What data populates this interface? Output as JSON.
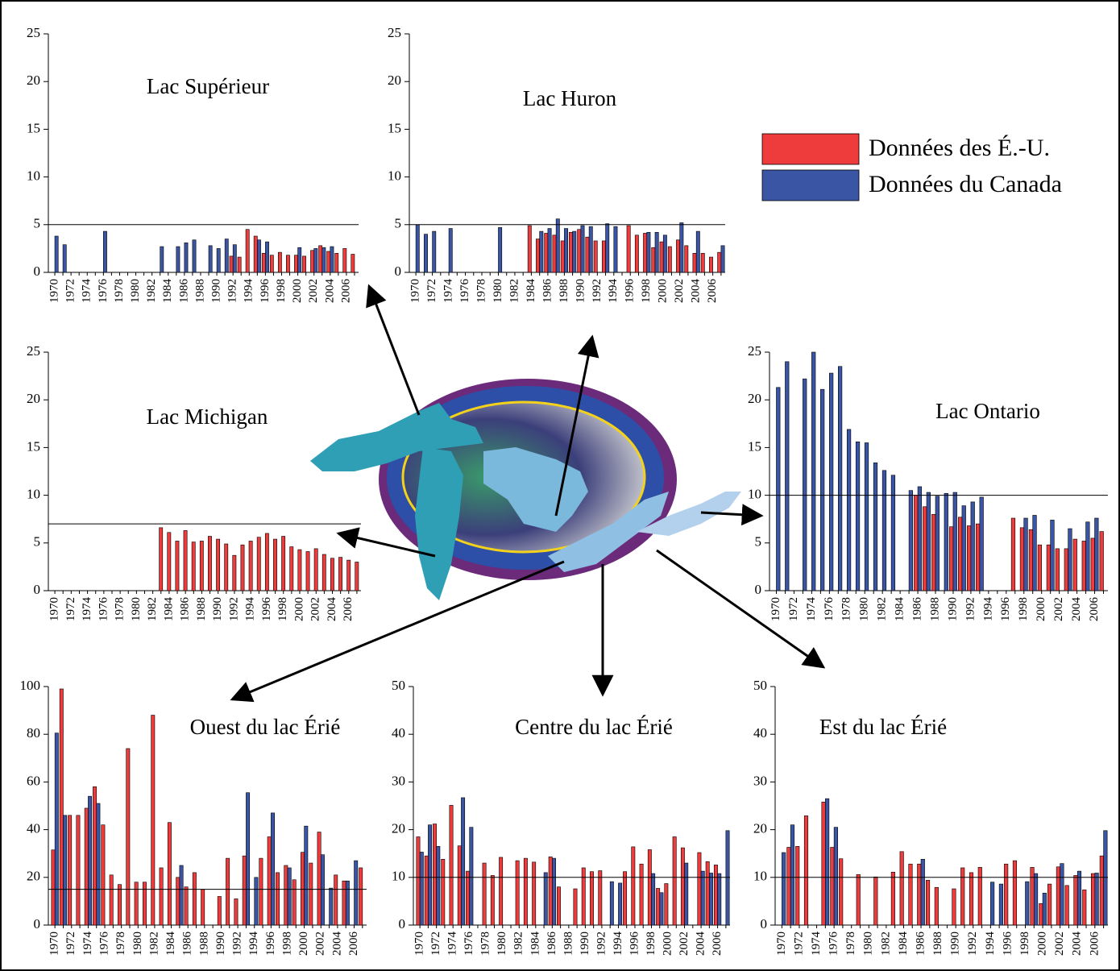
{
  "chart_data": [
    {
      "type": "bar",
      "title": "Lac Supérieur",
      "categories": [
        "1970",
        null,
        "1972",
        null,
        "1974",
        null,
        "1976",
        null,
        "1978",
        null,
        "1980",
        null,
        "1982",
        null,
        "1984",
        null,
        "1986",
        null,
        "1988",
        null,
        "1990",
        null,
        "1992",
        null,
        "1994",
        null,
        "1996",
        null,
        "1998",
        null,
        "2000",
        null,
        "2002",
        null,
        "2004",
        null,
        "2006",
        null
      ],
      "series": [
        {
          "name": "Données des É.-U.",
          "color": "#ee3b3b",
          "values": [
            null,
            null,
            null,
            null,
            null,
            null,
            null,
            null,
            null,
            null,
            null,
            null,
            null,
            null,
            null,
            null,
            null,
            null,
            null,
            null,
            null,
            null,
            1.7,
            1.6,
            4.5,
            3.8,
            2.0,
            1.8,
            2.1,
            1.8,
            1.8,
            1.7,
            2.3,
            2.8,
            2.2,
            2.0,
            2.5,
            1.9
          ]
        },
        {
          "name": "Données du Canada",
          "color": "#3a55a4",
          "values": [
            3.8,
            2.9,
            null,
            null,
            null,
            null,
            4.3,
            null,
            null,
            null,
            null,
            null,
            null,
            2.7,
            null,
            2.7,
            3.1,
            3.4,
            null,
            2.8,
            2.5,
            3.5,
            2.9,
            null,
            null,
            3.4,
            3.2,
            null,
            null,
            null,
            2.6,
            null,
            2.5,
            2.6,
            2.7,
            null,
            null,
            null
          ]
        }
      ],
      "ylim": [
        0,
        25
      ],
      "yticks": [
        0,
        5,
        10,
        15,
        20,
        25
      ],
      "reference_line": 5
    },
    {
      "type": "bar",
      "title": "Lac Huron",
      "categories": [
        "1970",
        null,
        "1972",
        null,
        "1974",
        null,
        "1976",
        null,
        "1978",
        null,
        "1980",
        null,
        "1982",
        null,
        "1984",
        null,
        "1986",
        null,
        "1988",
        null,
        "1990",
        null,
        "1992",
        null,
        "1994",
        null,
        "1996",
        null,
        "1998",
        null,
        "2000",
        null,
        "2002",
        null,
        "2004",
        null,
        "2006",
        null
      ],
      "series": [
        {
          "name": "Données des É.-U.",
          "color": "#ee3b3b",
          "values": [
            null,
            null,
            null,
            null,
            null,
            null,
            null,
            null,
            null,
            null,
            null,
            null,
            null,
            null,
            4.9,
            3.5,
            4.1,
            3.9,
            3.3,
            4.2,
            4.5,
            3.7,
            3.3,
            3.3,
            null,
            null,
            4.9,
            3.9,
            4.1,
            2.6,
            3.2,
            2.7,
            3.4,
            2.8,
            2.0,
            2.0,
            1.6,
            2.1
          ]
        },
        {
          "name": "Données du Canada",
          "color": "#3a55a4",
          "values": [
            5.0,
            4.0,
            4.3,
            null,
            4.6,
            null,
            null,
            null,
            null,
            null,
            4.7,
            null,
            null,
            null,
            null,
            4.3,
            4.6,
            5.6,
            4.6,
            4.3,
            4.9,
            4.8,
            null,
            5.1,
            4.8,
            null,
            null,
            null,
            4.2,
            4.2,
            3.9,
            null,
            5.2,
            null,
            4.3,
            null,
            null,
            2.8
          ]
        }
      ],
      "ylim": [
        0,
        25
      ],
      "yticks": [
        0,
        5,
        10,
        15,
        20,
        25
      ],
      "reference_line": 5
    },
    {
      "type": "bar",
      "title": "Lac Michigan",
      "categories": [
        "1970",
        null,
        "1972",
        null,
        "1974",
        null,
        "1976",
        null,
        "1978",
        null,
        "1980",
        null,
        "1982",
        null,
        "1984",
        null,
        "1986",
        null,
        "1988",
        null,
        "1990",
        null,
        "1992",
        null,
        "1994",
        null,
        "1996",
        null,
        "1998",
        null,
        "2000",
        null,
        "2002",
        null,
        "2004",
        null,
        "2006",
        null
      ],
      "series": [
        {
          "name": "Données des É.-U.",
          "color": "#ee3b3b",
          "values": [
            null,
            null,
            null,
            null,
            null,
            null,
            null,
            null,
            null,
            null,
            null,
            null,
            null,
            6.6,
            6.1,
            5.2,
            6.3,
            5.1,
            5.2,
            5.7,
            5.4,
            4.9,
            3.7,
            4.8,
            5.2,
            5.6,
            6.0,
            5.4,
            5.7,
            4.6,
            4.3,
            4.1,
            4.4,
            3.8,
            3.4,
            3.5,
            3.2,
            3.0
          ]
        }
      ],
      "ylim": [
        0,
        25
      ],
      "yticks": [
        0,
        5,
        10,
        15,
        20,
        25
      ],
      "reference_line": 7
    },
    {
      "type": "bar",
      "title": "Lac Ontario",
      "categories": [
        "1970",
        null,
        "1972",
        null,
        "1974",
        null,
        "1976",
        null,
        "1978",
        null,
        "1980",
        null,
        "1982",
        null,
        "1984",
        null,
        "1986",
        null,
        "1988",
        null,
        "1990",
        null,
        "1992",
        null,
        "1994",
        null,
        "1996",
        null,
        "1998",
        null,
        "2000",
        null,
        "2002",
        null,
        "2004",
        null,
        "2006",
        null
      ],
      "series": [
        {
          "name": "Données des É.-U.",
          "color": "#ee3b3b",
          "values": [
            null,
            null,
            null,
            null,
            null,
            null,
            null,
            null,
            null,
            null,
            null,
            null,
            null,
            null,
            null,
            null,
            10.0,
            8.8,
            8.0,
            null,
            6.7,
            7.7,
            6.8,
            7.0,
            null,
            null,
            null,
            7.6,
            6.6,
            6.4,
            4.8,
            4.8,
            4.4,
            4.4,
            5.4,
            5.2,
            5.5,
            6.2
          ]
        },
        {
          "name": "Données du Canada",
          "color": "#3a55a4",
          "values": [
            21.3,
            24.0,
            null,
            22.2,
            25.0,
            21.1,
            22.8,
            23.5,
            16.9,
            15.6,
            15.5,
            13.4,
            12.6,
            12.1,
            null,
            10.5,
            10.9,
            10.3,
            9.9,
            10.2,
            10.3,
            8.9,
            9.3,
            9.8,
            null,
            null,
            null,
            null,
            7.6,
            7.9,
            null,
            7.4,
            null,
            6.5,
            null,
            7.2,
            7.6,
            null
          ]
        }
      ],
      "ylim": [
        0,
        25
      ],
      "yticks": [
        0,
        5,
        10,
        15,
        20,
        25
      ],
      "reference_line": 10
    },
    {
      "type": "bar",
      "title": "Ouest du lac Érié",
      "categories": [
        "1970",
        null,
        "1972",
        null,
        "1974",
        null,
        "1976",
        null,
        "1978",
        null,
        "1980",
        null,
        "1982",
        null,
        "1984",
        null,
        "1986",
        null,
        "1988",
        null,
        "1990",
        null,
        "1992",
        null,
        "1994",
        null,
        "1996",
        null,
        "1998",
        null,
        "2000",
        null,
        "2002",
        null,
        "2004",
        null,
        "2006",
        null
      ],
      "series": [
        {
          "name": "Données des É.-U.",
          "color": "#ee3b3b",
          "values": [
            31.5,
            99,
            46,
            46,
            49,
            58,
            42,
            21,
            17,
            74,
            18,
            18,
            88,
            24,
            43,
            20,
            16,
            22,
            15,
            null,
            12,
            28,
            11,
            29,
            null,
            28,
            37,
            22,
            25,
            19,
            30.5,
            26,
            39,
            null,
            21,
            18.5,
            null,
            24
          ]
        },
        {
          "name": "Données du Canada",
          "color": "#3a55a4",
          "values": [
            80.5,
            46,
            null,
            null,
            54,
            51,
            null,
            null,
            null,
            null,
            null,
            null,
            null,
            null,
            null,
            25,
            null,
            null,
            null,
            null,
            null,
            null,
            null,
            55.5,
            20,
            null,
            47,
            null,
            24,
            null,
            41.5,
            null,
            29.5,
            15.5,
            null,
            18.5,
            27,
            null
          ]
        }
      ],
      "ylim": [
        0,
        100
      ],
      "yticks": [
        0,
        20,
        40,
        60,
        80,
        100
      ],
      "reference_line": 15
    },
    {
      "type": "bar",
      "title": "Centre du lac Érié",
      "categories": [
        "1970",
        null,
        "1972",
        null,
        "1974",
        null,
        "1976",
        null,
        "1978",
        null,
        "1980",
        null,
        "1982",
        null,
        "1984",
        null,
        "1986",
        null,
        "1988",
        null,
        "1990",
        null,
        "1992",
        null,
        "1994",
        null,
        "1996",
        null,
        "1998",
        null,
        "2000",
        null,
        "2002",
        null,
        "2004",
        null,
        "2006",
        null
      ],
      "series": [
        {
          "name": "Données des É.-U.",
          "color": "#ee3b3b",
          "values": [
            18.5,
            14.5,
            21.2,
            13.8,
            25.1,
            16.6,
            11.3,
            null,
            13,
            10.4,
            14.2,
            null,
            13.5,
            14,
            13.2,
            null,
            14.3,
            8,
            null,
            7.6,
            12,
            11.2,
            11.4,
            null,
            null,
            11.2,
            16.4,
            12.8,
            15.8,
            7.7,
            8.7,
            18.5,
            16.2,
            null,
            15.2,
            13.3,
            12.6,
            null
          ]
        },
        {
          "name": "Données du Canada",
          "color": "#3a55a4",
          "values": [
            15.3,
            21,
            16.5,
            null,
            null,
            26.7,
            20.5,
            null,
            null,
            null,
            null,
            null,
            null,
            null,
            null,
            11,
            14,
            null,
            null,
            null,
            null,
            null,
            null,
            9.1,
            8.8,
            null,
            null,
            null,
            10.8,
            6.8,
            null,
            null,
            13,
            null,
            11.3,
            10.9,
            10.8,
            19.8
          ]
        }
      ],
      "ylim": [
        0,
        50
      ],
      "yticks": [
        0,
        10,
        20,
        30,
        40,
        50
      ],
      "reference_line": 10
    },
    {
      "type": "bar",
      "title": "Est du lac Érié",
      "categories": [
        "1970",
        null,
        "1972",
        null,
        "1974",
        null,
        "1976",
        null,
        "1978",
        null,
        "1980",
        null,
        "1982",
        null,
        "1984",
        null,
        "1986",
        null,
        "1988",
        null,
        "1990",
        null,
        "1992",
        null,
        "1994",
        null,
        "1996",
        null,
        "1998",
        null,
        "2000",
        null,
        "2002",
        null,
        "2004",
        null,
        "2006",
        null
      ],
      "series": [
        {
          "name": "Données des É.-U.",
          "color": "#ee3b3b",
          "values": [
            null,
            16.3,
            16.5,
            22.9,
            null,
            25.8,
            16.3,
            13.9,
            null,
            10.6,
            null,
            10.1,
            null,
            11.1,
            15.4,
            12.8,
            12.8,
            9.4,
            7.9,
            null,
            7.6,
            12,
            11,
            12.1,
            null,
            null,
            12.8,
            13.5,
            null,
            12.1,
            4.5,
            8.6,
            12.2,
            8.3,
            10.4,
            7.4,
            10.8,
            14.5
          ]
        },
        {
          "name": "Données du Canada",
          "color": "#3a55a4",
          "values": [
            15.2,
            21,
            null,
            null,
            null,
            26.5,
            20.5,
            null,
            null,
            null,
            null,
            null,
            null,
            null,
            null,
            null,
            13.8,
            null,
            null,
            null,
            null,
            null,
            null,
            null,
            9,
            8.6,
            null,
            null,
            9.1,
            10.8,
            6.7,
            null,
            12.9,
            null,
            11.3,
            null,
            10.9,
            19.8
          ]
        }
      ],
      "ylim": [
        0,
        50
      ],
      "yticks": [
        0,
        10,
        20,
        30,
        40,
        50
      ],
      "reference_line": 10
    }
  ]
}
